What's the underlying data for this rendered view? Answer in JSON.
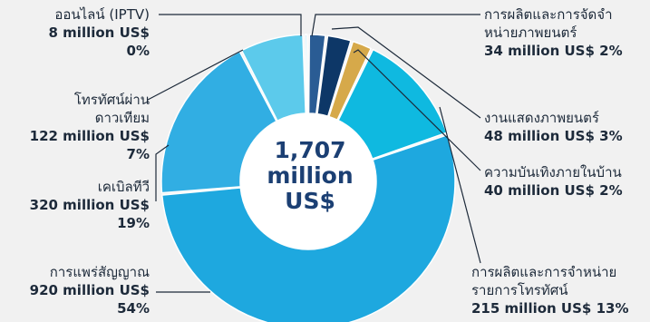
{
  "chart_data": {
    "type": "pie",
    "style": "donut",
    "total": {
      "value": "1,707",
      "unit_line1": "million",
      "unit_line2": "US$"
    },
    "slices": [
      {
        "id": "production",
        "name_lines": [
          "การผลิตและการจัดจำ",
          "หน่ายภาพยนตร์"
        ],
        "value": 34,
        "value_label": "34 million US$ 2%",
        "percent_label": "",
        "color": "#2a5c94"
      },
      {
        "id": "cinema",
        "name_lines": [
          "งานแสดงภาพยนตร์"
        ],
        "value": 48,
        "value_label": "48 million US$ 3%",
        "percent_label": "",
        "color": "#0d3767"
      },
      {
        "id": "home",
        "name_lines": [
          "ความบันเทิงภายในบ้าน"
        ],
        "value": 40,
        "value_label": "40 million US$ 2%",
        "percent_label": "",
        "color": "#d6a94a"
      },
      {
        "id": "tvprod",
        "name_lines": [
          "การผลิตและการจำหน่าย",
          "รายการโทรทัศน์"
        ],
        "value": 215,
        "value_label": "215 million US$ 13%",
        "percent_label": "",
        "color": "#0fb9e0"
      },
      {
        "id": "broadcast",
        "name_lines": [
          "การแพร่สัญญาณ"
        ],
        "value": 920,
        "value_label": "920 million US$",
        "percent_label": "54%",
        "color": "#1ea8df"
      },
      {
        "id": "cable",
        "name_lines": [
          "เคเบิลทีวี"
        ],
        "value": 320,
        "value_label": "320 million US$",
        "percent_label": "19%",
        "color": "#31aee3"
      },
      {
        "id": "satellite",
        "name_lines": [
          "โทรทัศน์ผ่าน",
          "ดาวเทียม"
        ],
        "value": 122,
        "value_label": "122 million US$",
        "percent_label": "7%",
        "color": "#5ccaeb"
      },
      {
        "id": "iptv",
        "name_lines": [
          "ออนไลน์  (IPTV)"
        ],
        "value": 8,
        "value_label": "8 million US$",
        "percent_label": "0%",
        "color": "#bfe7f5"
      }
    ]
  }
}
